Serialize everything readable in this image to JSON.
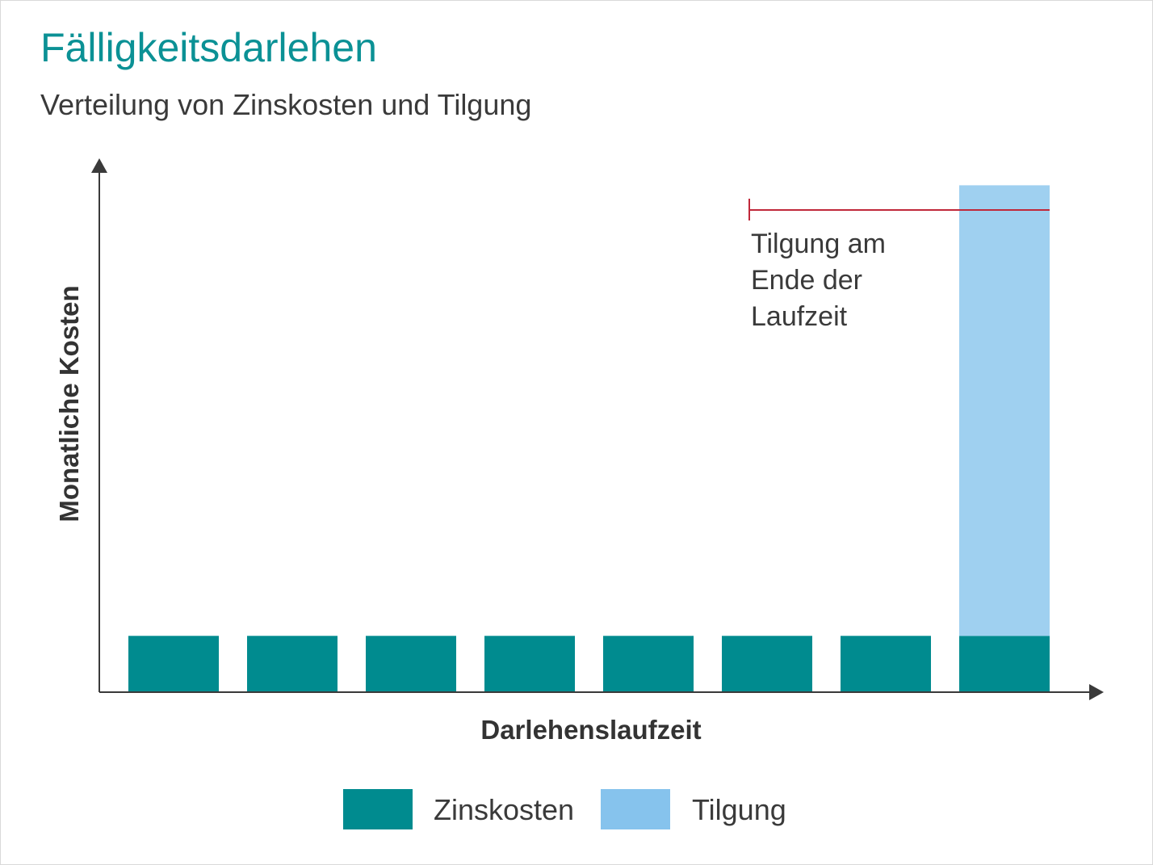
{
  "chart_data": {
    "type": "bar",
    "stacked": true,
    "title": "Fälligkeitsdarlehen",
    "subtitle": "Verteilung von Zinskosten und Tilgung",
    "xlabel": "Darlehenslaufzeit",
    "ylabel": "Monatliche Kosten",
    "categories": [
      "",
      "",
      "",
      "",
      "",
      "",
      "",
      ""
    ],
    "series": [
      {
        "name": "Zinskosten",
        "color": "#008b8f",
        "values": [
          1,
          1,
          1,
          1,
          1,
          1,
          1,
          1
        ]
      },
      {
        "name": "Tilgung",
        "color": "#9fd0f0",
        "values": [
          0,
          0,
          0,
          0,
          0,
          0,
          0,
          8
        ]
      }
    ],
    "ylim": [
      0,
      9.35
    ],
    "grid": false,
    "legend_position": "bottom",
    "annotation": {
      "lines": [
        "Tilgung am",
        "Ende der",
        "Laufzeit"
      ],
      "line_color": "#c0283a"
    },
    "legend": [
      {
        "label": "Zinskosten",
        "color": "#008b8f"
      },
      {
        "label": "Tilgung",
        "color": "#86c3ed"
      }
    ],
    "axis_color": "#3a3a3a"
  }
}
